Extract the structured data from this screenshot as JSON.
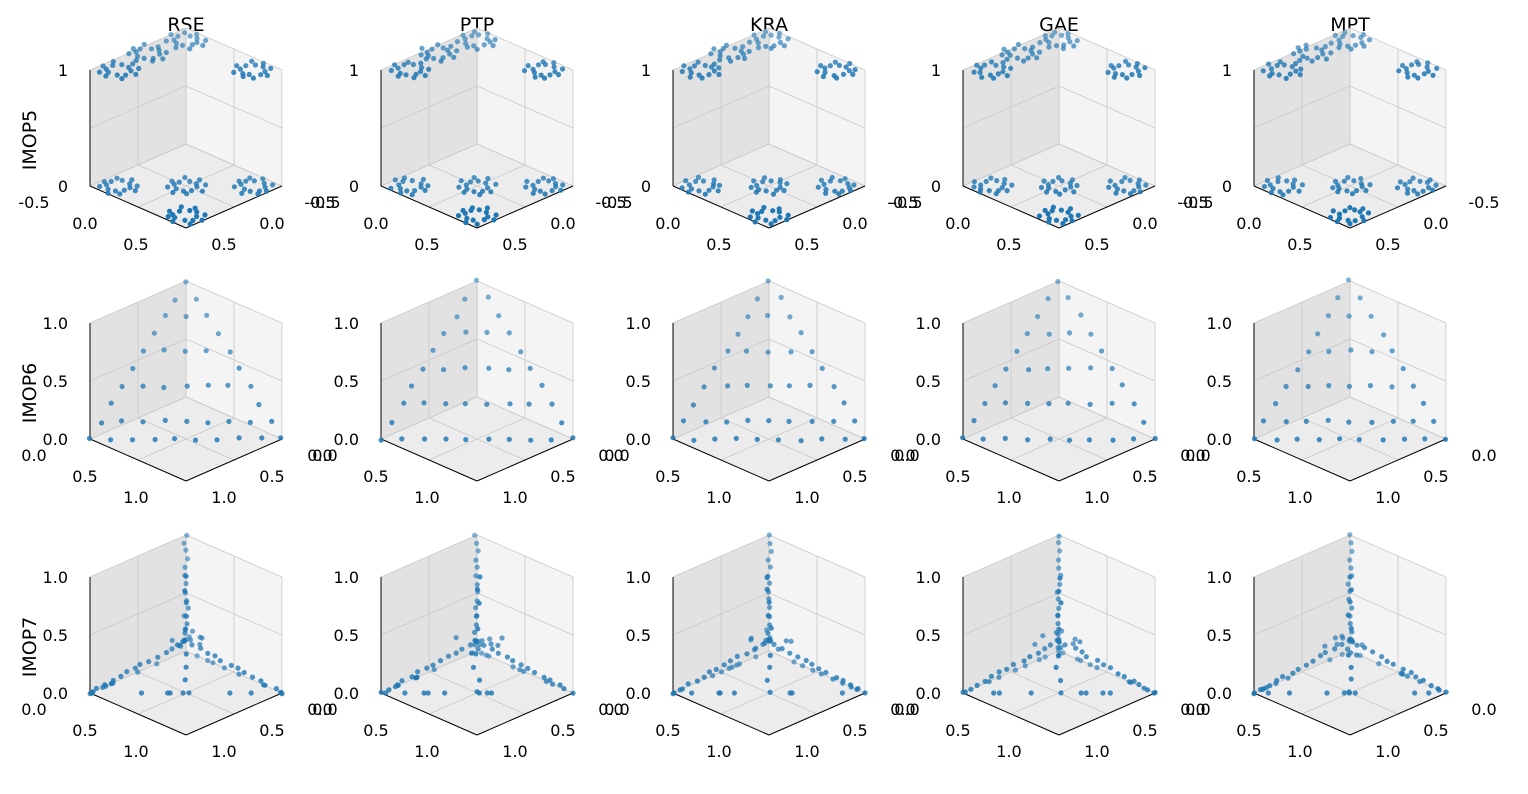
{
  "figure": {
    "column_titles": [
      "RSE",
      "PTP",
      "KRA",
      "GAE",
      "MPT"
    ],
    "row_labels": [
      "IMOP5",
      "IMOP6",
      "IMOP7"
    ]
  },
  "colors": {
    "marker": "#1f77b4",
    "pane_light": "#f4f4f4",
    "pane_mid": "#ececec",
    "pane_dark": "#e2e2e2",
    "grid": "#c8c8c8",
    "axis": "#000000"
  },
  "chart_data": [
    {
      "type": "scatter",
      "projection": "3d",
      "problem": "IMOP5",
      "axis_ranges": {
        "x": [
          -0.5,
          0.5
        ],
        "y": [
          -0.5,
          0.5
        ],
        "z": [
          0,
          1
        ]
      },
      "tick_labels": {
        "x": [
          "-0.5",
          "0.0",
          "0.5"
        ],
        "y": [
          "-0.5",
          "0.0",
          "0.5"
        ],
        "z": [
          "0",
          "1"
        ]
      },
      "grid": true,
      "pattern": "eight circular clusters of points: four at z=0, four at z=1",
      "methods": [
        "RSE",
        "PTP",
        "KRA",
        "GAE",
        "MPT"
      ]
    },
    {
      "type": "scatter",
      "projection": "3d",
      "problem": "IMOP6",
      "axis_ranges": {
        "x": [
          0,
          1
        ],
        "y": [
          0,
          1
        ],
        "z": [
          0,
          1
        ]
      },
      "tick_labels": {
        "x": [
          "0.0",
          "0.5",
          "1.0"
        ],
        "y": [
          "0.0",
          "0.5",
          "1.0"
        ],
        "z": [
          "0.0",
          "0.5",
          "1.0"
        ]
      },
      "grid": true,
      "pattern": "grid-like lattice of points lying on a triangular plane",
      "methods": [
        "RSE",
        "PTP",
        "KRA",
        "GAE",
        "MPT"
      ]
    },
    {
      "type": "scatter",
      "projection": "3d",
      "problem": "IMOP7",
      "axis_ranges": {
        "x": [
          0,
          1
        ],
        "y": [
          0,
          1
        ],
        "z": [
          0,
          1
        ]
      },
      "tick_labels": {
        "x": [
          "0.0",
          "0.5",
          "1.0"
        ],
        "y": [
          "0.0",
          "0.5",
          "1.0"
        ],
        "z": [
          "0.0",
          "0.5",
          "1.0"
        ]
      },
      "grid": true,
      "pattern": "points along three arms radiating from a center, plus a vertical column",
      "methods": [
        "RSE",
        "PTP",
        "KRA",
        "GAE",
        "MPT"
      ]
    }
  ]
}
